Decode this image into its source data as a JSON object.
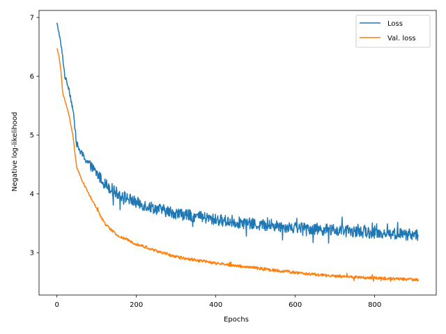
{
  "chart_data": {
    "type": "line",
    "title": "",
    "xlabel": "Epochs",
    "ylabel": "Negative log-likelihood",
    "xlim": [
      -45,
      955
    ],
    "ylim": [
      2.28,
      7.12
    ],
    "x_ticks": [
      0,
      200,
      400,
      600,
      800
    ],
    "y_ticks": [
      3,
      4,
      5,
      6,
      7
    ],
    "grid": false,
    "legend_position": "top-right",
    "series": [
      {
        "name": "Loss",
        "color": "#1f77b4",
        "x_range": [
          0,
          910
        ],
        "trend_x": [
          0,
          5,
          10,
          15,
          20,
          30,
          40,
          50,
          60,
          80,
          100,
          120,
          150,
          200,
          250,
          300,
          400,
          500,
          600,
          700,
          800,
          910
        ],
        "trend_y": [
          6.9,
          6.75,
          6.55,
          6.3,
          6.0,
          5.8,
          5.45,
          4.85,
          4.7,
          4.52,
          4.35,
          4.18,
          4.02,
          3.85,
          3.75,
          3.67,
          3.56,
          3.48,
          3.43,
          3.38,
          3.34,
          3.3
        ],
        "noise": 0.1
      },
      {
        "name": "Val. loss",
        "color": "#ff7f0e",
        "x_range": [
          0,
          910
        ],
        "trend_x": [
          0,
          5,
          10,
          15,
          20,
          30,
          40,
          50,
          60,
          80,
          100,
          120,
          150,
          200,
          250,
          300,
          400,
          500,
          600,
          700,
          800,
          910
        ],
        "trend_y": [
          6.48,
          6.35,
          6.1,
          5.7,
          5.6,
          5.35,
          5.0,
          4.45,
          4.28,
          4.0,
          3.75,
          3.5,
          3.3,
          3.15,
          3.03,
          2.93,
          2.82,
          2.74,
          2.66,
          2.6,
          2.57,
          2.54
        ],
        "noise": 0.025
      }
    ]
  }
}
